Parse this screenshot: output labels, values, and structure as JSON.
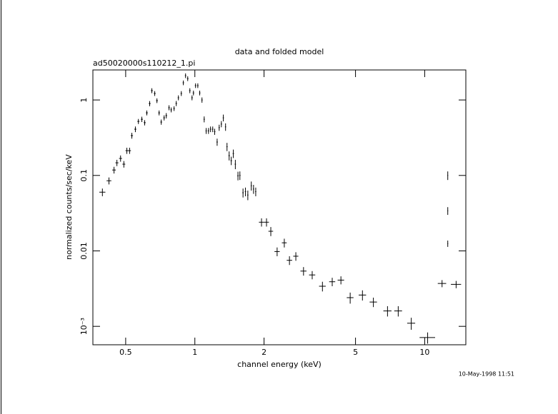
{
  "chart_data": {
    "type": "scatter",
    "title": "data and folded model",
    "subtitle": "ad50020000s110212_1.pi",
    "x_label": "channel energy (keV)",
    "y_label": "normalized counts/sec/keV",
    "timestamp": "10-May-1998 11:51",
    "x_log": true,
    "y_log": true,
    "xlim": [
      0.36,
      15.1
    ],
    "ylim": [
      0.00057,
      2.5
    ],
    "xticks": [
      0.5,
      1,
      2,
      5,
      10
    ],
    "yticks": [
      {
        "value": 0.001,
        "label": "10⁻³"
      },
      0.01,
      0.1,
      1
    ],
    "series": [
      {
        "color": "#000000",
        "x": [
          0.396,
          0.423,
          0.445,
          0.458,
          0.475,
          0.491,
          0.506,
          0.52,
          0.532,
          0.551,
          0.568,
          0.588,
          0.605,
          0.618,
          0.636,
          0.65,
          0.669,
          0.684,
          0.699,
          0.714,
          0.735,
          0.751,
          0.772,
          0.789,
          0.812,
          0.83,
          0.848,
          0.873,
          0.891,
          0.911,
          0.931,
          0.951,
          0.972,
          0.986,
          1.007,
          1.03,
          1.05,
          1.074,
          1.098,
          1.12,
          1.146,
          1.17,
          1.196,
          1.22,
          1.25,
          1.276,
          1.304,
          1.33,
          1.36,
          1.38,
          1.41,
          1.44,
          1.47,
          1.5,
          1.54,
          1.57,
          1.62,
          1.66,
          1.7,
          1.76,
          1.8,
          1.84,
          1.95,
          2.05,
          2.14,
          2.28,
          2.45,
          2.58,
          2.75,
          2.97,
          3.24,
          3.59,
          3.96,
          4.32,
          4.74,
          5.36,
          5.98,
          6.89,
          7.67,
          8.74,
          10.3,
          11.9,
          12.6,
          12.6,
          12.6,
          13.7
        ],
        "values": [
          0.06,
          0.085,
          0.118,
          0.147,
          0.168,
          0.141,
          0.213,
          0.213,
          0.337,
          0.41,
          0.52,
          0.555,
          0.5,
          0.675,
          0.897,
          1.33,
          1.22,
          0.98,
          0.675,
          0.51,
          0.58,
          0.62,
          0.79,
          0.74,
          0.77,
          0.9,
          1.07,
          1.22,
          1.69,
          2.1,
          1.92,
          1.33,
          1.07,
          1.24,
          1.55,
          1.55,
          1.24,
          1.0,
          0.555,
          0.39,
          0.39,
          0.41,
          0.41,
          0.38,
          0.277,
          0.43,
          0.48,
          0.58,
          0.44,
          0.24,
          0.183,
          0.157,
          0.195,
          0.141,
          0.099,
          0.1,
          0.059,
          0.061,
          0.055,
          0.073,
          0.066,
          0.061,
          0.024,
          0.024,
          0.0182,
          0.0098,
          0.0128,
          0.0075,
          0.0085,
          0.0054,
          0.0048,
          0.0034,
          0.0039,
          0.0041,
          0.0024,
          0.0026,
          0.0021,
          0.0016,
          0.0016,
          0.0011,
          0.00071,
          0.0037,
          0.1,
          0.034,
          0.0125,
          0.0036
        ],
        "xerr": [
          0.012,
          0.01,
          0.008,
          0.007,
          0.007,
          0.007,
          0.007,
          0.007,
          0.006,
          0.006,
          0.006,
          0.006,
          0.006,
          0.006,
          0.006,
          0.006,
          0.006,
          0.006,
          0.006,
          0.006,
          0.006,
          0.006,
          0.006,
          0.006,
          0.006,
          0.006,
          0.006,
          0.006,
          0.006,
          0.006,
          0.007,
          0.007,
          0.007,
          0.007,
          0.007,
          0.007,
          0.007,
          0.007,
          0.007,
          0.007,
          0.008,
          0.008,
          0.008,
          0.008,
          0.008,
          0.008,
          0.008,
          0.008,
          0.008,
          0.008,
          0.01,
          0.01,
          0.01,
          0.01,
          0.01,
          0.01,
          0.01,
          0.01,
          0.01,
          0.01,
          0.01,
          0.01,
          0.05,
          0.05,
          0.05,
          0.06,
          0.06,
          0.07,
          0.07,
          0.09,
          0.1,
          0.12,
          0.12,
          0.14,
          0.16,
          0.2,
          0.22,
          0.28,
          0.3,
          0.35,
          0.8,
          0.5,
          0.05,
          0.05,
          0.05,
          0.7
        ],
        "yerr": [
          0.007,
          0.009,
          0.012,
          0.014,
          0.016,
          0.014,
          0.02,
          0.02,
          0.03,
          0.035,
          0.04,
          0.045,
          0.04,
          0.05,
          0.07,
          0.1,
          0.09,
          0.07,
          0.05,
          0.04,
          0.045,
          0.05,
          0.06,
          0.055,
          0.055,
          0.07,
          0.08,
          0.09,
          0.12,
          0.15,
          0.14,
          0.1,
          0.08,
          0.09,
          0.11,
          0.11,
          0.09,
          0.08,
          0.05,
          0.035,
          0.035,
          0.035,
          0.035,
          0.035,
          0.03,
          0.04,
          0.045,
          0.06,
          0.05,
          0.03,
          0.025,
          0.02,
          0.025,
          0.02,
          0.013,
          0.013,
          0.008,
          0.008,
          0.008,
          0.01,
          0.009,
          0.008,
          0.003,
          0.003,
          0.0025,
          0.0013,
          0.0017,
          0.001,
          0.0011,
          0.0007,
          0.0006,
          0.0005,
          0.0005,
          0.0005,
          0.0004,
          0.0004,
          0.0003,
          0.00025,
          0.00025,
          0.0002,
          0.00012,
          0.0004,
          0.013,
          0.004,
          0.0012,
          0.0004
        ]
      }
    ]
  }
}
